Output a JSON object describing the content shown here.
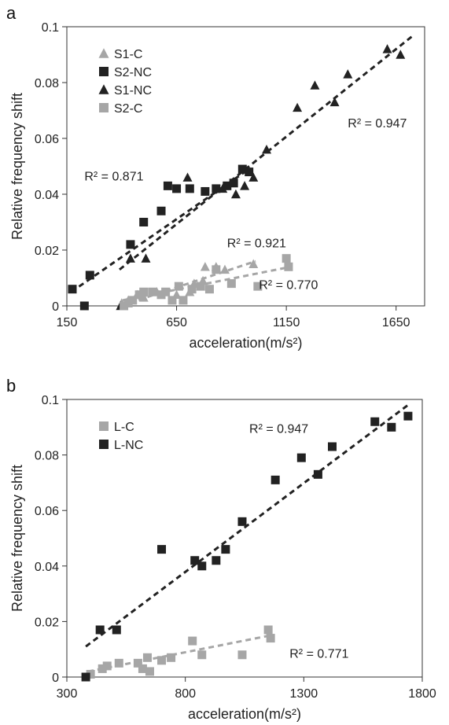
{
  "chart_data": [
    {
      "panel": "a",
      "type": "scatter",
      "xlabel": "acceleration(m/s²)",
      "ylabel": "Relative frequency shift",
      "xlim": [
        150,
        1780
      ],
      "ylim": [
        0,
        0.1
      ],
      "xticks": [
        "150",
        "650",
        "1150",
        "1650"
      ],
      "yticks": [
        "0",
        "0.02",
        "0.04",
        "0.06",
        "0.08",
        "0.1"
      ],
      "legend": {
        "placement": "top-left",
        "entries": [
          "S1-C",
          "S2-NC",
          "S1-NC",
          "S2-C"
        ]
      },
      "colors": {
        "C": "#a6a6a6",
        "NC": "#222222"
      },
      "series": [
        {
          "name": "S1-C",
          "marker": "triangle",
          "color": "#a6a6a6",
          "points": [
            [
              400,
              0.001
            ],
            [
              430,
              0.002
            ],
            [
              470,
              0.004
            ],
            [
              500,
              0.003
            ],
            [
              560,
              0.005
            ],
            [
              650,
              0.004
            ],
            [
              710,
              0.005
            ],
            [
              730,
              0.008
            ],
            [
              770,
              0.009
            ],
            [
              780,
              0.014
            ],
            [
              830,
              0.014
            ],
            [
              870,
              0.013
            ],
            [
              1000,
              0.015
            ]
          ]
        },
        {
          "name": "S2-NC",
          "marker": "square",
          "color": "#222222",
          "points": [
            [
              175,
              0.006
            ],
            [
              230,
              0
            ],
            [
              255,
              0.011
            ],
            [
              440,
              0.022
            ],
            [
              500,
              0.03
            ],
            [
              580,
              0.034
            ],
            [
              610,
              0.043
            ],
            [
              650,
              0.042
            ],
            [
              710,
              0.042
            ],
            [
              780,
              0.041
            ],
            [
              830,
              0.042
            ],
            [
              880,
              0.043
            ],
            [
              910,
              0.044
            ],
            [
              950,
              0.049
            ],
            [
              980,
              0.048
            ]
          ]
        },
        {
          "name": "S1-NC",
          "marker": "triangle",
          "color": "#222222",
          "points": [
            [
              395,
              0
            ],
            [
              440,
              0.017
            ],
            [
              510,
              0.017
            ],
            [
              700,
              0.046
            ],
            [
              860,
              0.042
            ],
            [
              920,
              0.04
            ],
            [
              960,
              0.043
            ],
            [
              1000,
              0.046
            ],
            [
              1060,
              0.056
            ],
            [
              1200,
              0.071
            ],
            [
              1280,
              0.079
            ],
            [
              1370,
              0.073
            ],
            [
              1430,
              0.083
            ],
            [
              1610,
              0.092
            ],
            [
              1670,
              0.09
            ]
          ]
        },
        {
          "name": "S2-C",
          "marker": "square",
          "color": "#a6a6a6",
          "points": [
            [
              410,
              0
            ],
            [
              430,
              0.001
            ],
            [
              450,
              0.002
            ],
            [
              480,
              0.004
            ],
            [
              500,
              0.005
            ],
            [
              540,
              0.005
            ],
            [
              580,
              0.004
            ],
            [
              600,
              0.005
            ],
            [
              630,
              0.002
            ],
            [
              660,
              0.007
            ],
            [
              680,
              0.002
            ],
            [
              720,
              0.006
            ],
            [
              760,
              0.007
            ],
            [
              800,
              0.006
            ],
            [
              830,
              0.013
            ],
            [
              900,
              0.008
            ],
            [
              1020,
              0.007
            ],
            [
              1150,
              0.017
            ],
            [
              1160,
              0.014
            ]
          ]
        }
      ],
      "trendlines": [
        {
          "series": "S2-NC",
          "color": "#222222",
          "from": [
            170,
            0.005
          ],
          "to": [
            980,
            0.049
          ]
        },
        {
          "series": "S1-NC",
          "color": "#222222",
          "from": [
            390,
            0.013
          ],
          "to": [
            1730,
            0.097
          ]
        },
        {
          "series": "S1-C",
          "color": "#a6a6a6",
          "from": [
            395,
            0.0
          ],
          "to": [
            1010,
            0.016
          ]
        },
        {
          "series": "S2-C",
          "color": "#a6a6a6",
          "from": [
            405,
            0.002
          ],
          "to": [
            1170,
            0.014
          ]
        }
      ],
      "r2_labels": [
        {
          "text": "R² = 0.947",
          "x": 1430,
          "y": 0.064
        },
        {
          "text": "R² = 0.871",
          "x": 230,
          "y": 0.045
        },
        {
          "text": "R² = 0.921",
          "x": 880,
          "y": 0.021
        },
        {
          "text": "R² = 0.770",
          "x": 1025,
          "y": 0.006
        }
      ]
    },
    {
      "panel": "b",
      "type": "scatter",
      "xlabel": "acceleration(m/s²)",
      "ylabel": "Relative frequency shift",
      "xlim": [
        300,
        1800
      ],
      "ylim": [
        0,
        0.1
      ],
      "xticks": [
        "300",
        "800",
        "1300",
        "1800"
      ],
      "yticks": [
        "0",
        "0.02",
        "0.04",
        "0.06",
        "0.08",
        "0.1"
      ],
      "legend": {
        "placement": "top-left",
        "entries": [
          "L-C",
          "L-NC"
        ]
      },
      "colors": {
        "C": "#a6a6a6",
        "NC": "#222222"
      },
      "series": [
        {
          "name": "L-C",
          "marker": "square",
          "color": "#a6a6a6",
          "points": [
            [
              400,
              0.001
            ],
            [
              450,
              0.003
            ],
            [
              470,
              0.004
            ],
            [
              520,
              0.005
            ],
            [
              600,
              0.005
            ],
            [
              620,
              0.003
            ],
            [
              640,
              0.007
            ],
            [
              650,
              0.002
            ],
            [
              700,
              0.006
            ],
            [
              740,
              0.007
            ],
            [
              830,
              0.013
            ],
            [
              870,
              0.008
            ],
            [
              1040,
              0.008
            ],
            [
              1150,
              0.017
            ],
            [
              1160,
              0.014
            ]
          ]
        },
        {
          "name": "L-NC",
          "marker": "square",
          "color": "#222222",
          "points": [
            [
              380,
              0
            ],
            [
              440,
              0.017
            ],
            [
              510,
              0.017
            ],
            [
              700,
              0.046
            ],
            [
              840,
              0.042
            ],
            [
              870,
              0.04
            ],
            [
              930,
              0.042
            ],
            [
              970,
              0.046
            ],
            [
              1040,
              0.056
            ],
            [
              1180,
              0.071
            ],
            [
              1290,
              0.079
            ],
            [
              1360,
              0.073
            ],
            [
              1420,
              0.083
            ],
            [
              1600,
              0.092
            ],
            [
              1670,
              0.09
            ],
            [
              1740,
              0.094
            ]
          ]
        }
      ],
      "trendlines": [
        {
          "series": "L-NC",
          "color": "#222222",
          "from": [
            380,
            0.011
          ],
          "to": [
            1740,
            0.098
          ]
        },
        {
          "series": "L-C",
          "color": "#a6a6a6",
          "from": [
            390,
            0.002
          ],
          "to": [
            1160,
            0.015
          ]
        }
      ],
      "r2_labels": [
        {
          "text": "R² = 0.947",
          "x": 1070,
          "y": 0.088
        },
        {
          "text": "R² = 0.771",
          "x": 1240,
          "y": 0.007
        }
      ]
    }
  ]
}
